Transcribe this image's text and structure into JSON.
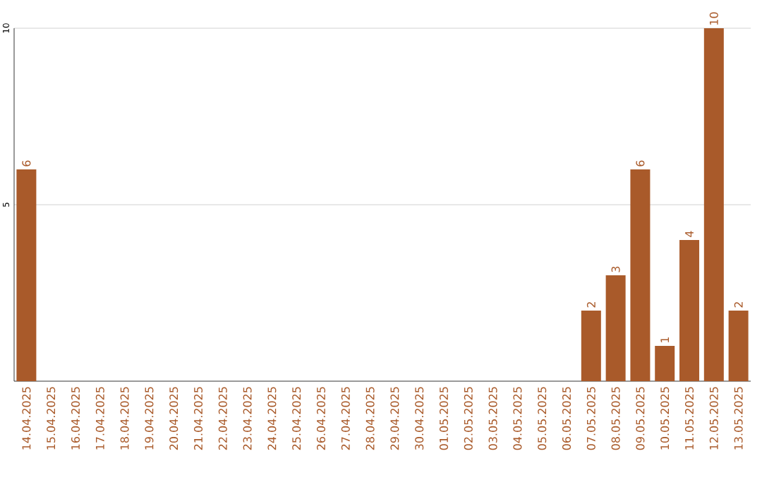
{
  "chart_data": {
    "type": "bar",
    "categories": [
      "14.04.2025",
      "15.04.2025",
      "16.04.2025",
      "17.04.2025",
      "18.04.2025",
      "19.04.2025",
      "20.04.2025",
      "21.04.2025",
      "22.04.2025",
      "23.04.2025",
      "24.04.2025",
      "25.04.2025",
      "26.04.2025",
      "27.04.2025",
      "28.04.2025",
      "29.04.2025",
      "30.04.2025",
      "01.05.2025",
      "02.05.2025",
      "03.05.2025",
      "04.05.2025",
      "05.05.2025",
      "06.05.2025",
      "07.05.2025",
      "08.05.2025",
      "09.05.2025",
      "10.05.2025",
      "11.05.2025",
      "12.05.2025",
      "13.05.2025"
    ],
    "values": [
      6,
      0,
      0,
      0,
      0,
      0,
      0,
      0,
      0,
      0,
      0,
      0,
      0,
      0,
      0,
      0,
      0,
      0,
      0,
      0,
      0,
      0,
      0,
      2,
      3,
      6,
      1,
      4,
      10,
      2
    ],
    "value_labels": [
      "6",
      null,
      null,
      null,
      null,
      null,
      null,
      null,
      null,
      null,
      null,
      null,
      null,
      null,
      null,
      null,
      null,
      null,
      null,
      null,
      null,
      null,
      null,
      "2",
      "3",
      "6",
      "1",
      "4",
      "10",
      "2"
    ],
    "color": "#a95a2a",
    "ylim": [
      0,
      10
    ],
    "yticks": [
      5,
      10
    ],
    "grid": "y"
  }
}
